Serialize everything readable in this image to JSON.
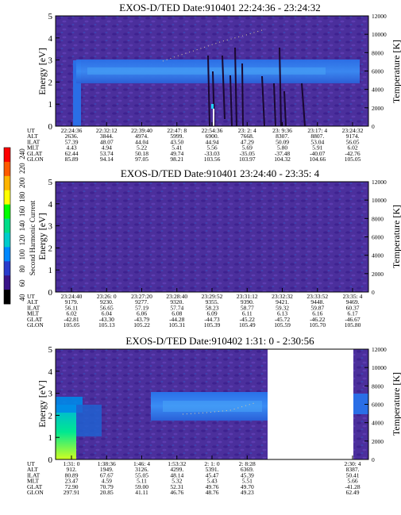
{
  "colorbar": {
    "label": "Second Harmonic Current",
    "ticks": [
      "240",
      "220",
      "200",
      "180",
      "160",
      "140",
      "120",
      "100",
      "80",
      "60",
      "40"
    ],
    "colors": [
      "#ff0000",
      "#ff5a00",
      "#ffb400",
      "#ffff00",
      "#00ff00",
      "#00dd88",
      "#00cccc",
      "#0088ff",
      "#2a3ccc",
      "#3a1488",
      "#000000"
    ]
  },
  "row_labels": [
    "UT",
    "ALT",
    "ILAT",
    "MLT",
    "GLAT",
    "GLON"
  ],
  "chart_data": [
    {
      "type": "heatmap",
      "title": "EXOS-D/TED   Date:910401   22:24:36 - 23:24:32",
      "ylabel": "Energy [eV]",
      "y2label": "Temperature [K]",
      "ylim": [
        0,
        5
      ],
      "y2lim": [
        0,
        12000
      ],
      "yticks": [
        "0",
        "1",
        "2",
        "3",
        "4",
        "5"
      ],
      "y2ticks": [
        "0",
        "2000",
        "4000",
        "6000",
        "8000",
        "10000",
        "12000"
      ],
      "columns": [
        [
          "22:24:36",
          "2636.",
          "57.39",
          "4.43",
          "62.44",
          "85.89"
        ],
        [
          "22:32:12",
          "3844.",
          "48.07",
          "4.94",
          "53.74",
          "94.14"
        ],
        [
          "22:39:40",
          "4974.",
          "44.04",
          "5.22",
          "50.18",
          "97.05"
        ],
        [
          "22:47: 8",
          "5999.",
          "43.50",
          "5.41",
          "49.74",
          "98.21"
        ],
        [
          "22:54:36",
          "6900.",
          "44.94",
          "5.56",
          "-33.03",
          "103.56"
        ],
        [
          "23: 2: 4",
          "7668.",
          "47.29",
          "5.69",
          "-35.05",
          "103.97"
        ],
        [
          "23: 9:36",
          "8307.",
          "50.09",
          "5.80",
          "-37.48",
          "104.32"
        ],
        [
          "23:17: 4",
          "8807.",
          "53.04",
          "5.91",
          "-40.07",
          "104.66"
        ],
        [
          "23:24:32",
          "9174.",
          "56.05",
          "6.02",
          "-42.76",
          "105.05"
        ]
      ]
    },
    {
      "type": "heatmap",
      "title": "EXOS-D/TED   Date:910401   23:24:40 - 23:35: 4",
      "ylabel": "Energy [eV]",
      "y2label": "Temperature [K]",
      "ylim": [
        0,
        5
      ],
      "y2lim": [
        0,
        12000
      ],
      "yticks": [
        "0",
        "1",
        "2",
        "3",
        "4",
        "5"
      ],
      "y2ticks": [
        "0",
        "2000",
        "4000",
        "6000",
        "8000",
        "10000",
        "12000"
      ],
      "columns": [
        [
          "23:24:40",
          "9179.",
          "56.11",
          "6.02",
          "-42.81",
          "105.05"
        ],
        [
          "23:26: 0",
          "9230.",
          "56.65",
          "6.04",
          "-43.30",
          "105.13"
        ],
        [
          "23:27:20",
          "9277.",
          "57.19",
          "6.06",
          "-43.79",
          "105.22"
        ],
        [
          "23:28:40",
          "9320.",
          "57.74",
          "6.08",
          "-44.28",
          "105.31"
        ],
        [
          "23:29:52",
          "9355.",
          "58.23",
          "6.09",
          "-44.73",
          "105.39"
        ],
        [
          "23:31:12",
          "9390.",
          "58.77",
          "6.11",
          "-45.22",
          "105.49"
        ],
        [
          "23:32:32",
          "9421.",
          "59.32",
          "6.13",
          "-45.72",
          "105.59"
        ],
        [
          "23:33:52",
          "9448.",
          "59.87",
          "6.16",
          "-46.22",
          "105.70"
        ],
        [
          "23:35: 4",
          "9469.",
          "60.37",
          "6.17",
          "-46.67",
          "105.80"
        ]
      ]
    },
    {
      "type": "heatmap",
      "title": "EXOS-D/TED   Date:910402   1:31: 0 - 2:30:56",
      "ylabel": "Energy [eV]",
      "y2label": "Temperature [K]",
      "ylim": [
        0,
        5
      ],
      "y2lim": [
        0,
        12000
      ],
      "yticks": [
        "0",
        "1",
        "2",
        "3",
        "4",
        "5"
      ],
      "y2ticks": [
        "0",
        "2000",
        "4000",
        "6000",
        "8000",
        "10000",
        "12000"
      ],
      "columns": [
        [
          "1:31: 0",
          "912.",
          "80.89",
          "23.47",
          "72.90",
          "297.91"
        ],
        [
          "1:38:36",
          "1949.",
          "67.67",
          "4.59",
          "70.79",
          "20.85"
        ],
        [
          "1:46: 4",
          "3126.",
          "55.05",
          "5.11",
          "59.00",
          "41.11"
        ],
        [
          "1:53:32",
          "4299.",
          "48.14",
          "5.32",
          "52.31",
          "46.76"
        ],
        [
          "2: 1: 0",
          "5391.",
          "45.47",
          "5.43",
          "49.76",
          "48.76"
        ],
        [
          "2: 8:28",
          "6369.",
          "45.39",
          "5.51",
          "49.70",
          "49.23"
        ],
        [
          "",
          "",
          "",
          "",
          "",
          ""
        ],
        [
          "",
          "",
          "",
          "",
          "",
          ""
        ],
        [
          "2:30: 4",
          "8387.",
          "50.41",
          "5.66",
          "-41.28",
          "62.49"
        ]
      ]
    }
  ]
}
